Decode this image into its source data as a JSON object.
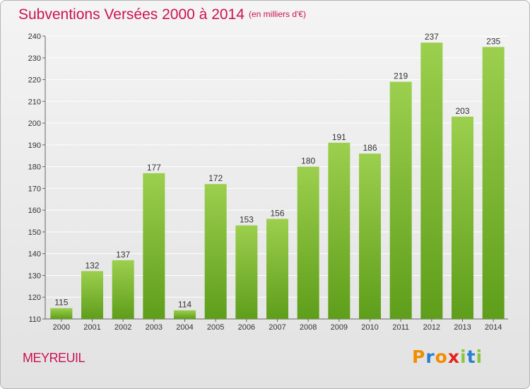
{
  "header": {
    "title": "Subventions Versées 2000 à 2014",
    "subtitle": "(en milliers d'€)"
  },
  "footer": {
    "commune": "MEYREUIL",
    "logo_text": "Proxiti",
    "logo_colors": [
      "#f28c00",
      "#2a7fd1",
      "#f28c00",
      "#e2231a",
      "#8cc63f",
      "#2a7fd1",
      "#8cc63f"
    ]
  },
  "colors": {
    "accent": "#cc1155",
    "bar_top": "#9ccf4e",
    "bar_bottom": "#5e9e1a",
    "grid": "#ffffff",
    "text": "#333333"
  },
  "chart_data": {
    "type": "bar",
    "title": "Subventions Versées 2000 à 2014",
    "subtitle": "(en milliers d'€)",
    "categories": [
      "2000",
      "2001",
      "2002",
      "2003",
      "2004",
      "2005",
      "2006",
      "2007",
      "2008",
      "2009",
      "2010",
      "2011",
      "2012",
      "2013",
      "2014"
    ],
    "values": [
      115,
      132,
      137,
      177,
      114,
      172,
      153,
      156,
      180,
      191,
      186,
      219,
      237,
      203,
      235
    ],
    "ylim": [
      110,
      240
    ],
    "yticks": [
      110,
      120,
      130,
      140,
      150,
      160,
      170,
      180,
      190,
      200,
      210,
      220,
      230,
      240
    ],
    "grid": true,
    "xlabel": "",
    "ylabel": ""
  }
}
